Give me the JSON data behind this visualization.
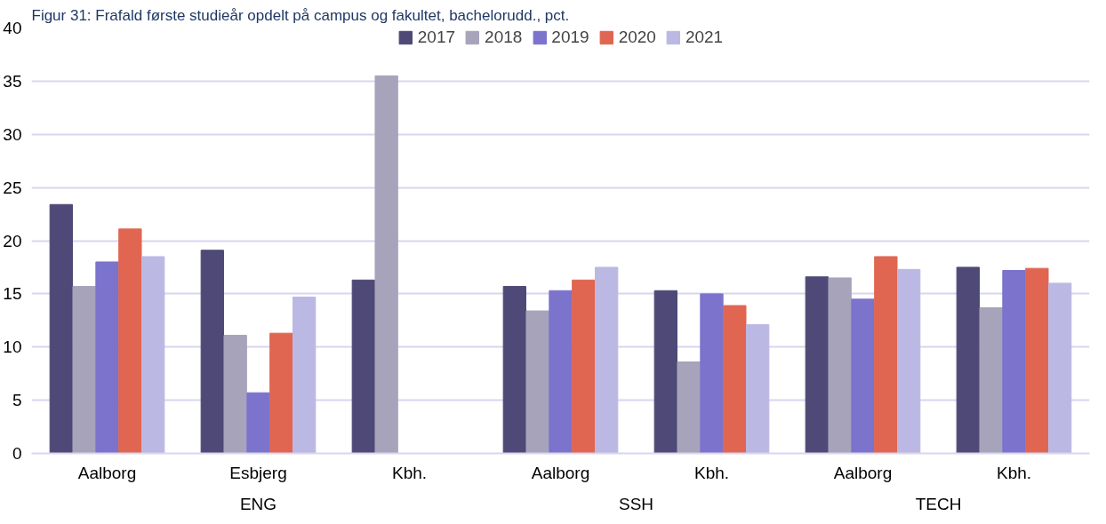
{
  "chart_data": {
    "type": "bar",
    "title": "Figur 31: Frafald første studieår opdelt på campus og fakultet, bachelorudd., pct.",
    "categories": [
      "Aalborg",
      "Esbjerg",
      "Kbh.",
      "Aalborg",
      "Kbh.",
      "Aalborg",
      "Kbh."
    ],
    "annotations": [
      "ENG",
      "SSH",
      "TECH"
    ],
    "series": [
      {
        "name": "2017",
        "color": "#4e4976",
        "values": [
          23.4,
          19.1,
          16.3,
          15.7,
          15.3,
          16.6,
          17.5
        ]
      },
      {
        "name": "2018",
        "color": "#a7a3bb",
        "values": [
          15.7,
          11.1,
          35.5,
          13.4,
          8.6,
          16.5,
          13.7
        ]
      },
      {
        "name": "2019",
        "color": "#7b73cc",
        "values": [
          18.0,
          5.7,
          null,
          15.3,
          15.0,
          14.5,
          17.2
        ]
      },
      {
        "name": "2020",
        "color": "#e06651",
        "values": [
          21.1,
          11.3,
          null,
          16.3,
          13.9,
          18.5,
          17.4
        ]
      },
      {
        "name": "2021",
        "color": "#bbb8e3",
        "values": [
          18.5,
          14.7,
          null,
          17.5,
          12.1,
          17.3,
          16.0
        ]
      }
    ],
    "ylim": [
      0,
      40
    ],
    "yticks": [
      0,
      5,
      10,
      15,
      20,
      25,
      30,
      35,
      40
    ],
    "grid": "y",
    "legend": "top"
  }
}
